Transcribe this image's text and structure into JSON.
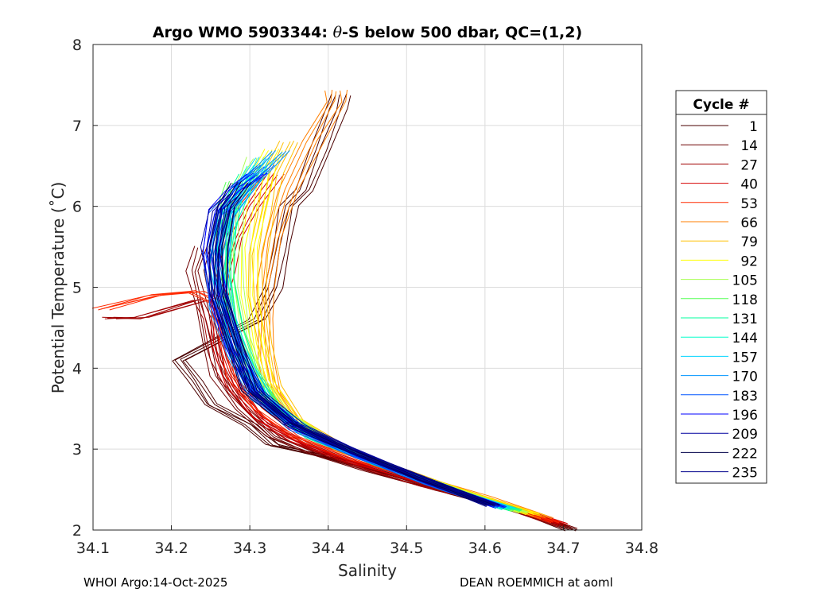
{
  "chart_data": {
    "type": "line",
    "title": "Argo WMO 5903344: θ-S below 500 dbar,  QC=(1,2)",
    "title_parts": {
      "prefix": "Argo WMO 5903344: ",
      "theta": "θ",
      "suffix": "-S below 500 dbar,  QC=(1,2)"
    },
    "xlabel": "Salinity",
    "ylabel": "Potential Temperature (˚C)",
    "xlim": [
      34.1,
      34.8
    ],
    "ylim": [
      2,
      8
    ],
    "xticks": [
      "34.1",
      "34.2",
      "34.3",
      "34.4",
      "34.5",
      "34.6",
      "34.7",
      "34.8"
    ],
    "yticks": [
      "2",
      "3",
      "4",
      "5",
      "6",
      "7",
      "8"
    ],
    "grid": true,
    "legend": {
      "title": "Cycle #",
      "position": "right",
      "entries": [
        {
          "label": "1",
          "color": "#4a0000"
        },
        {
          "label": "14",
          "color": "#6e0000"
        },
        {
          "label": "27",
          "color": "#a00000"
        },
        {
          "label": "40",
          "color": "#d40000"
        },
        {
          "label": "53",
          "color": "#ff2a00"
        },
        {
          "label": "66",
          "color": "#ff7f00"
        },
        {
          "label": "79",
          "color": "#ffbf00"
        },
        {
          "label": "92",
          "color": "#ffff00"
        },
        {
          "label": "105",
          "color": "#aaff55"
        },
        {
          "label": "118",
          "color": "#55ff55"
        },
        {
          "label": "131",
          "color": "#00ff9f"
        },
        {
          "label": "144",
          "color": "#00ffcc"
        },
        {
          "label": "157",
          "color": "#00d5ff"
        },
        {
          "label": "170",
          "color": "#0095ff"
        },
        {
          "label": "183",
          "color": "#0055ff"
        },
        {
          "label": "196",
          "color": "#0000ff"
        },
        {
          "label": "209",
          "color": "#00009f"
        },
        {
          "label": "222",
          "color": "#00004a"
        },
        {
          "label": "235",
          "color": "#00008b"
        }
      ]
    },
    "series": [
      {
        "name": "cycles 1-13",
        "color": "#4a0000",
        "points": [
          [
            34.711,
            2.0
          ],
          [
            34.66,
            2.18
          ],
          [
            34.56,
            2.45
          ],
          [
            34.48,
            2.68
          ],
          [
            34.4,
            2.9
          ],
          [
            34.33,
            3.05
          ],
          [
            34.3,
            3.3
          ],
          [
            34.25,
            3.55
          ],
          [
            34.23,
            3.85
          ],
          [
            34.21,
            4.1
          ],
          [
            34.31,
            4.6
          ],
          [
            34.33,
            5.0
          ],
          [
            34.34,
            5.5
          ],
          [
            34.35,
            6.0
          ],
          [
            34.37,
            6.2
          ],
          [
            34.39,
            6.7
          ],
          [
            34.41,
            7.2
          ],
          [
            34.416,
            7.38
          ]
        ]
      },
      {
        "name": "cycles 14-26",
        "color": "#6e0000",
        "points": [
          [
            34.71,
            2.02
          ],
          [
            34.64,
            2.25
          ],
          [
            34.54,
            2.5
          ],
          [
            34.45,
            2.75
          ],
          [
            34.38,
            2.95
          ],
          [
            34.33,
            3.15
          ],
          [
            34.29,
            3.5
          ],
          [
            34.26,
            3.9
          ],
          [
            34.25,
            4.3
          ],
          [
            34.24,
            4.8
          ],
          [
            34.23,
            5.2
          ],
          [
            34.24,
            5.5
          ]
        ]
      },
      {
        "name": "cycles 27-39",
        "color": "#a00000",
        "points": [
          [
            34.7,
            2.05
          ],
          [
            34.62,
            2.3
          ],
          [
            34.52,
            2.55
          ],
          [
            34.44,
            2.8
          ],
          [
            34.37,
            3.05
          ],
          [
            34.32,
            3.3
          ],
          [
            34.28,
            3.7
          ],
          [
            34.26,
            4.1
          ],
          [
            34.25,
            4.6
          ],
          [
            34.24,
            4.85
          ],
          [
            34.16,
            4.62
          ],
          [
            34.12,
            4.62
          ]
        ]
      },
      {
        "name": "cycles 40-52",
        "color": "#d40000",
        "points": [
          [
            34.7,
            2.08
          ],
          [
            34.62,
            2.32
          ],
          [
            34.52,
            2.6
          ],
          [
            34.43,
            2.85
          ],
          [
            34.36,
            3.1
          ],
          [
            34.31,
            3.4
          ],
          [
            34.28,
            3.8
          ],
          [
            34.26,
            4.3
          ],
          [
            34.26,
            4.8
          ],
          [
            34.27,
            5.2
          ],
          [
            34.28,
            5.6
          ],
          [
            34.3,
            6.0
          ],
          [
            34.33,
            6.4
          ]
        ]
      },
      {
        "name": "cycles 53-65",
        "color": "#ff2a00",
        "points": [
          [
            34.69,
            2.1
          ],
          [
            34.61,
            2.35
          ],
          [
            34.52,
            2.62
          ],
          [
            34.43,
            2.9
          ],
          [
            34.36,
            3.15
          ],
          [
            34.31,
            3.5
          ],
          [
            34.28,
            3.9
          ],
          [
            34.27,
            4.4
          ],
          [
            34.26,
            4.8
          ],
          [
            34.23,
            4.95
          ],
          [
            34.18,
            4.9
          ],
          [
            34.11,
            4.73
          ]
        ]
      },
      {
        "name": "cycles 66-78",
        "color": "#ff7f00",
        "points": [
          [
            34.68,
            2.15
          ],
          [
            34.6,
            2.4
          ],
          [
            34.51,
            2.68
          ],
          [
            34.42,
            2.98
          ],
          [
            34.36,
            3.3
          ],
          [
            34.33,
            3.7
          ],
          [
            34.32,
            4.1
          ],
          [
            34.32,
            4.6
          ],
          [
            34.32,
            5.0
          ],
          [
            34.33,
            5.6
          ],
          [
            34.35,
            6.2
          ],
          [
            34.38,
            6.8
          ],
          [
            34.41,
            7.3
          ],
          [
            34.41,
            7.43
          ]
        ]
      },
      {
        "name": "cycles 79-91",
        "color": "#ffbf00",
        "points": [
          [
            34.67,
            2.18
          ],
          [
            34.59,
            2.42
          ],
          [
            34.5,
            2.72
          ],
          [
            34.42,
            3.0
          ],
          [
            34.36,
            3.35
          ],
          [
            34.33,
            3.8
          ],
          [
            34.32,
            4.3
          ],
          [
            34.31,
            4.9
          ],
          [
            34.31,
            5.4
          ],
          [
            34.32,
            5.9
          ],
          [
            34.33,
            6.4
          ],
          [
            34.35,
            6.8
          ]
        ]
      },
      {
        "name": "cycles 92-104",
        "color": "#ffff00",
        "points": [
          [
            34.66,
            2.2
          ],
          [
            34.58,
            2.44
          ],
          [
            34.49,
            2.75
          ],
          [
            34.41,
            3.05
          ],
          [
            34.35,
            3.4
          ],
          [
            34.32,
            3.85
          ],
          [
            34.31,
            4.3
          ],
          [
            34.3,
            4.9
          ],
          [
            34.3,
            5.5
          ],
          [
            34.31,
            6.0
          ],
          [
            34.32,
            6.5
          ],
          [
            34.33,
            6.7
          ]
        ]
      },
      {
        "name": "cycles 105-117",
        "color": "#aaff55",
        "points": [
          [
            34.65,
            2.22
          ],
          [
            34.57,
            2.46
          ],
          [
            34.48,
            2.78
          ],
          [
            34.4,
            3.1
          ],
          [
            34.34,
            3.45
          ],
          [
            34.31,
            3.9
          ],
          [
            34.29,
            4.4
          ],
          [
            34.28,
            5.0
          ],
          [
            34.28,
            5.5
          ],
          [
            34.28,
            6.0
          ],
          [
            34.3,
            6.4
          ],
          [
            34.31,
            6.6
          ]
        ]
      },
      {
        "name": "cycles 118-130",
        "color": "#55ff55",
        "points": [
          [
            34.64,
            2.24
          ],
          [
            34.56,
            2.48
          ],
          [
            34.47,
            2.8
          ],
          [
            34.39,
            3.12
          ],
          [
            34.33,
            3.5
          ],
          [
            34.3,
            3.95
          ],
          [
            34.28,
            4.5
          ],
          [
            34.27,
            5.1
          ],
          [
            34.27,
            5.6
          ],
          [
            34.27,
            6.0
          ],
          [
            34.28,
            6.3
          ]
        ]
      },
      {
        "name": "cycles 131-143",
        "color": "#00ff9f",
        "points": [
          [
            34.64,
            2.25
          ],
          [
            34.55,
            2.5
          ],
          [
            34.46,
            2.82
          ],
          [
            34.38,
            3.15
          ],
          [
            34.33,
            3.55
          ],
          [
            34.3,
            4.0
          ],
          [
            34.28,
            4.5
          ],
          [
            34.27,
            5.1
          ],
          [
            34.27,
            5.7
          ],
          [
            34.28,
            6.1
          ],
          [
            34.3,
            6.4
          ]
        ]
      },
      {
        "name": "cycles 144-156",
        "color": "#00ffcc",
        "points": [
          [
            34.63,
            2.26
          ],
          [
            34.55,
            2.52
          ],
          [
            34.46,
            2.84
          ],
          [
            34.38,
            3.18
          ],
          [
            34.32,
            3.58
          ],
          [
            34.29,
            4.05
          ],
          [
            34.27,
            4.6
          ],
          [
            34.26,
            5.2
          ],
          [
            34.27,
            5.8
          ],
          [
            34.29,
            6.2
          ],
          [
            34.31,
            6.5
          ]
        ]
      },
      {
        "name": "cycles 157-169",
        "color": "#00d5ff",
        "points": [
          [
            34.63,
            2.27
          ],
          [
            34.54,
            2.54
          ],
          [
            34.45,
            2.86
          ],
          [
            34.37,
            3.2
          ],
          [
            34.32,
            3.6
          ],
          [
            34.29,
            4.1
          ],
          [
            34.27,
            4.7
          ],
          [
            34.26,
            5.3
          ],
          [
            34.27,
            5.9
          ],
          [
            34.3,
            6.3
          ],
          [
            34.32,
            6.6
          ]
        ]
      },
      {
        "name": "cycles 170-182",
        "color": "#0095ff",
        "points": [
          [
            34.62,
            2.28
          ],
          [
            34.54,
            2.56
          ],
          [
            34.45,
            2.88
          ],
          [
            34.37,
            3.22
          ],
          [
            34.31,
            3.62
          ],
          [
            34.28,
            4.15
          ],
          [
            34.26,
            4.75
          ],
          [
            34.26,
            5.35
          ],
          [
            34.27,
            5.9
          ],
          [
            34.3,
            6.3
          ],
          [
            34.34,
            6.68
          ]
        ]
      },
      {
        "name": "cycles 183-195",
        "color": "#0055ff",
        "points": [
          [
            34.62,
            2.28
          ],
          [
            34.53,
            2.57
          ],
          [
            34.44,
            2.9
          ],
          [
            34.36,
            3.25
          ],
          [
            34.31,
            3.65
          ],
          [
            34.28,
            4.2
          ],
          [
            34.26,
            4.8
          ],
          [
            34.25,
            5.4
          ],
          [
            34.26,
            5.9
          ],
          [
            34.29,
            6.25
          ],
          [
            34.32,
            6.5
          ]
        ]
      },
      {
        "name": "cycles 196-208",
        "color": "#0000ff",
        "points": [
          [
            34.62,
            2.29
          ],
          [
            34.53,
            2.58
          ],
          [
            34.44,
            2.92
          ],
          [
            34.36,
            3.27
          ],
          [
            34.31,
            3.68
          ],
          [
            34.28,
            4.25
          ],
          [
            34.26,
            4.85
          ],
          [
            34.25,
            5.45
          ],
          [
            34.26,
            5.95
          ],
          [
            34.28,
            6.2
          ],
          [
            34.31,
            6.4
          ]
        ]
      },
      {
        "name": "cycles 209-221",
        "color": "#00009f",
        "points": [
          [
            34.61,
            2.3
          ],
          [
            34.53,
            2.6
          ],
          [
            34.44,
            2.95
          ],
          [
            34.36,
            3.3
          ],
          [
            34.31,
            3.7
          ],
          [
            34.28,
            4.3
          ],
          [
            34.26,
            4.9
          ],
          [
            34.25,
            5.5
          ],
          [
            34.26,
            5.95
          ],
          [
            34.28,
            6.15
          ]
        ]
      },
      {
        "name": "cycles 222-234",
        "color": "#00004a",
        "points": [
          [
            34.61,
            2.31
          ],
          [
            34.52,
            2.62
          ],
          [
            34.43,
            2.97
          ],
          [
            34.35,
            3.32
          ],
          [
            34.3,
            3.72
          ],
          [
            34.28,
            4.3
          ],
          [
            34.26,
            4.9
          ],
          [
            34.26,
            5.5
          ],
          [
            34.27,
            6.0
          ],
          [
            34.29,
            6.3
          ]
        ]
      },
      {
        "name": "cycles 235+",
        "color": "#00008b",
        "points": [
          [
            34.61,
            2.32
          ],
          [
            34.52,
            2.63
          ],
          [
            34.43,
            2.98
          ],
          [
            34.35,
            3.34
          ],
          [
            34.3,
            3.75
          ],
          [
            34.28,
            4.35
          ],
          [
            34.26,
            4.95
          ],
          [
            34.26,
            5.5
          ],
          [
            34.27,
            6.0
          ]
        ]
      }
    ]
  },
  "footer": {
    "left": "WHOI Argo:14-Oct-2025",
    "right": "DEAN ROEMMICH at aoml"
  }
}
